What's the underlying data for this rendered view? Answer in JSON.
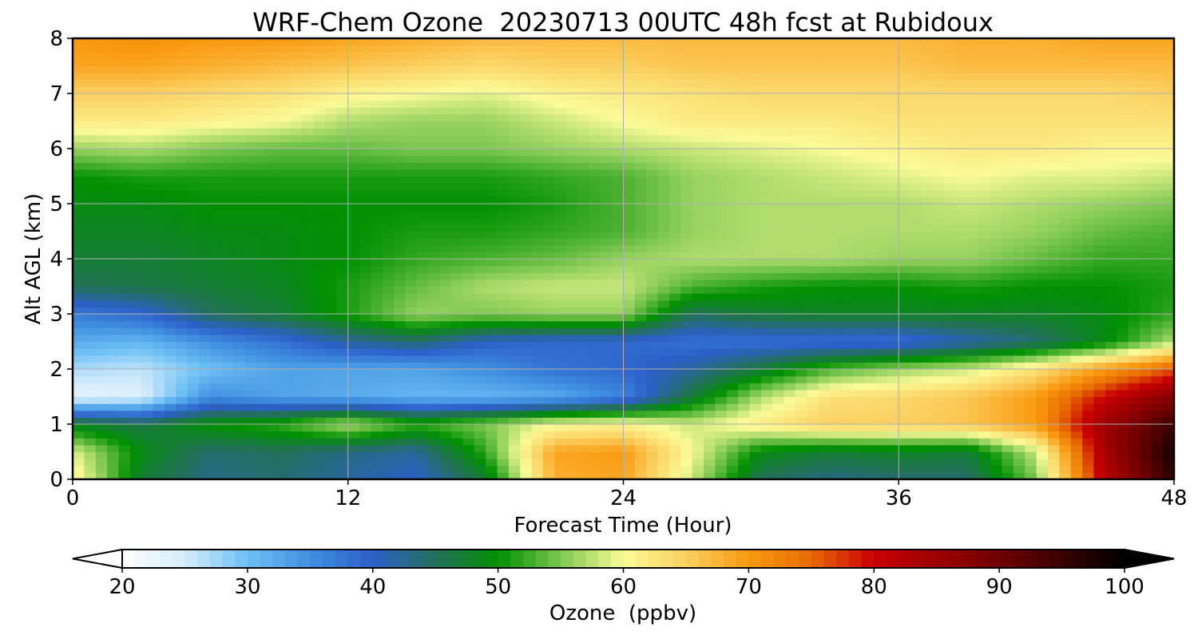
{
  "chart_data": {
    "type": "heatmap",
    "title": "WRF-Chem Ozone  20230713 00UTC 48h fcst at Rubidoux",
    "xlabel": "Forecast Time (Hour)",
    "ylabel": "Alt AGL (km)",
    "xlim": [
      0,
      48
    ],
    "ylim": [
      0,
      8
    ],
    "xticks": [
      "0",
      "12",
      "24",
      "36",
      "48"
    ],
    "yticks": [
      "0",
      "1",
      "2",
      "3",
      "4",
      "5",
      "6",
      "7",
      "8"
    ],
    "grid": true,
    "x_hours": [
      0,
      3,
      6,
      9,
      12,
      15,
      18,
      21,
      24,
      27,
      30,
      33,
      36,
      39,
      42,
      45,
      48
    ],
    "alt_km": [
      0,
      0.5,
      1,
      1.5,
      2,
      2.5,
      3,
      3.5,
      4,
      4.5,
      5,
      5.5,
      6,
      6.5,
      7,
      7.5,
      8
    ],
    "ozone_ppbv": [
      [
        62,
        47,
        43,
        44,
        42,
        40,
        47,
        68,
        69,
        58,
        45,
        43,
        44,
        44,
        55,
        82,
        96
      ],
      [
        59,
        49,
        44,
        45,
        43,
        42,
        52,
        69,
        70,
        60,
        49,
        47,
        48,
        47,
        58,
        84,
        98
      ],
      [
        48,
        46,
        50,
        52,
        57,
        52,
        55,
        60,
        61,
        58,
        62,
        65,
        65,
        66,
        70,
        85,
        95
      ],
      [
        23,
        24,
        35,
        33,
        32,
        31,
        31,
        32,
        36,
        47,
        57,
        63,
        64,
        66,
        70,
        80,
        88
      ],
      [
        27,
        26,
        30,
        33,
        33,
        33,
        35,
        38,
        39,
        42,
        47,
        53,
        56,
        58,
        63,
        70,
        76
      ],
      [
        32,
        31,
        35,
        38,
        42,
        44,
        40,
        39,
        39,
        38,
        38,
        38,
        38,
        41,
        44,
        49,
        57
      ],
      [
        37,
        39,
        45,
        47,
        51,
        56,
        55,
        56,
        56,
        45,
        47,
        48,
        48,
        48,
        48,
        49,
        52
      ],
      [
        45,
        46,
        47,
        48,
        51,
        54,
        57,
        58,
        58,
        53,
        51,
        50,
        50,
        51,
        50,
        50,
        51
      ],
      [
        47,
        47,
        48,
        49,
        50,
        52,
        53,
        54,
        56,
        57,
        57,
        57,
        56,
        56,
        54,
        52,
        52
      ],
      [
        48,
        48,
        49,
        49,
        50,
        51,
        51,
        52,
        53,
        56,
        57,
        57,
        57,
        57,
        56,
        54,
        53
      ],
      [
        49,
        49,
        50,
        50,
        50,
        50,
        50,
        51,
        53,
        56,
        57,
        57,
        57,
        58,
        57,
        56,
        55
      ],
      [
        50,
        51,
        51,
        51,
        51,
        51,
        51,
        52,
        53,
        56,
        57,
        58,
        59,
        60,
        59,
        59,
        58
      ],
      [
        56,
        57,
        55,
        54,
        54,
        55,
        55,
        56,
        57,
        58,
        59,
        60,
        61,
        62,
        62,
        61,
        61
      ],
      [
        62,
        62,
        61,
        60,
        57,
        56,
        56,
        58,
        60,
        62,
        62,
        62,
        63,
        63,
        63,
        63,
        63
      ],
      [
        65,
        65,
        64,
        63,
        61,
        60,
        59,
        61,
        62,
        63,
        64,
        64,
        64,
        64,
        64,
        64,
        65
      ],
      [
        69,
        69,
        68,
        67,
        66,
        65,
        64,
        65,
        65,
        66,
        66,
        66,
        66,
        67,
        67,
        67,
        67
      ],
      [
        70,
        71,
        70,
        70,
        69,
        68,
        67,
        67,
        67,
        67,
        67,
        67,
        67,
        68,
        68,
        69,
        69
      ]
    ],
    "colorbar": {
      "label": "Ozone  (ppbv)",
      "range": [
        20,
        100
      ],
      "ticks": [
        "20",
        "30",
        "40",
        "50",
        "60",
        "70",
        "80",
        "90",
        "100"
      ],
      "extend": "both",
      "stops": [
        {
          "value": 20,
          "color": "#ffffff"
        },
        {
          "value": 25,
          "color": "#d4ecfb"
        },
        {
          "value": 30,
          "color": "#6cc0f5"
        },
        {
          "value": 35,
          "color": "#3f8fe0"
        },
        {
          "value": 40,
          "color": "#2c5fc8"
        },
        {
          "value": 45,
          "color": "#23705a"
        },
        {
          "value": 50,
          "color": "#009000"
        },
        {
          "value": 55,
          "color": "#7ec850"
        },
        {
          "value": 60,
          "color": "#fbfb98"
        },
        {
          "value": 65,
          "color": "#fbd060"
        },
        {
          "value": 70,
          "color": "#fa9a10"
        },
        {
          "value": 75,
          "color": "#e86a00"
        },
        {
          "value": 80,
          "color": "#c80000"
        },
        {
          "value": 90,
          "color": "#700000"
        },
        {
          "value": 100,
          "color": "#000000"
        }
      ]
    }
  }
}
